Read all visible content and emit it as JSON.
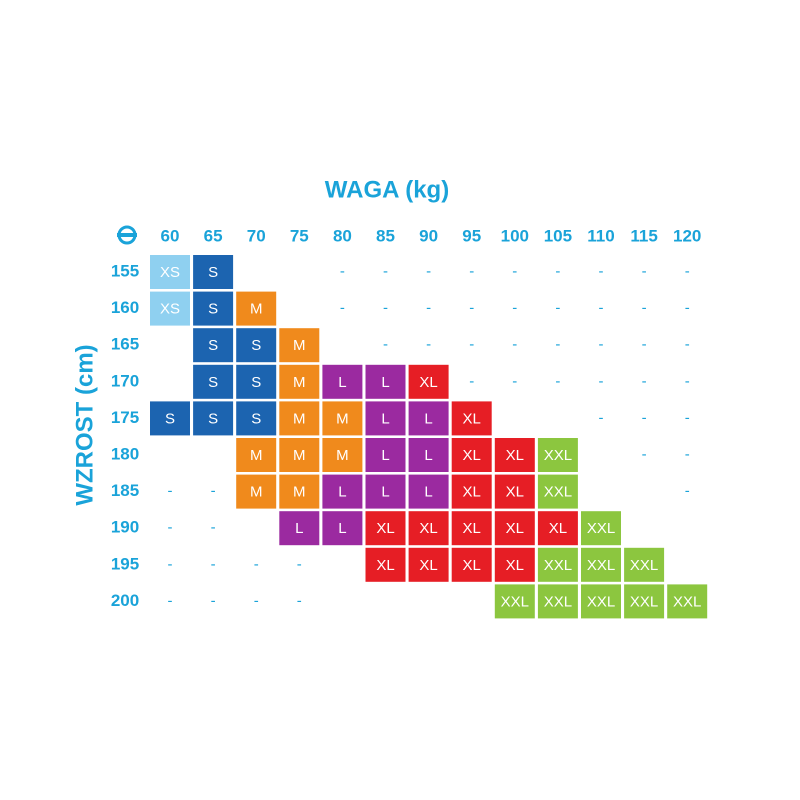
{
  "title": "WAGA (kg)",
  "side_label": "WZROST (cm)",
  "weights": [
    "60",
    "65",
    "70",
    "75",
    "80",
    "85",
    "90",
    "95",
    "100",
    "105",
    "110",
    "115",
    "120"
  ],
  "heights": [
    "155",
    "160",
    "165",
    "170",
    "175",
    "180",
    "185",
    "190",
    "195",
    "200"
  ],
  "colors": {
    "XS": "#8fd0f0",
    "S": "#1c64b0",
    "M": "#f08a1c",
    "L": "#9b2aa0",
    "XL": "#e61e25",
    "XXL": "#8cc63f"
  },
  "rows": [
    [
      "XS",
      "S",
      null,
      null,
      "-",
      "-",
      "-",
      "-",
      "-",
      "-",
      "-",
      "-",
      "-"
    ],
    [
      "XS",
      "S",
      "M",
      null,
      "-",
      "-",
      "-",
      "-",
      "-",
      "-",
      "-",
      "-",
      "-"
    ],
    [
      null,
      "S",
      "S",
      "M",
      null,
      "-",
      "-",
      "-",
      "-",
      "-",
      "-",
      "-",
      "-"
    ],
    [
      null,
      "S",
      "S",
      "M",
      "L",
      "L",
      "XL",
      "-",
      "-",
      "-",
      "-",
      "-",
      "-"
    ],
    [
      "S",
      "S",
      "S",
      "M",
      "M",
      "L",
      "L",
      "XL",
      null,
      null,
      "-",
      "-",
      "-"
    ],
    [
      null,
      null,
      "M",
      "M",
      "M",
      "L",
      "L",
      "XL",
      "XL",
      "XXL",
      null,
      "-",
      "-"
    ],
    [
      "-",
      "-",
      "M",
      "M",
      "L",
      "L",
      "L",
      "XL",
      "XL",
      "XXL",
      null,
      null,
      "-"
    ],
    [
      "-",
      "-",
      null,
      "L",
      "L",
      "XL",
      "XL",
      "XL",
      "XL",
      "XL",
      "XXL",
      null,
      null
    ],
    [
      "-",
      "-",
      "-",
      "-",
      null,
      "XL",
      "XL",
      "XL",
      "XL",
      "XXL",
      "XXL",
      "XXL",
      null
    ],
    [
      "-",
      "-",
      "-",
      "-",
      null,
      null,
      null,
      null,
      "XXL",
      "XXL",
      "XXL",
      "XXL",
      "XXL"
    ]
  ]
}
